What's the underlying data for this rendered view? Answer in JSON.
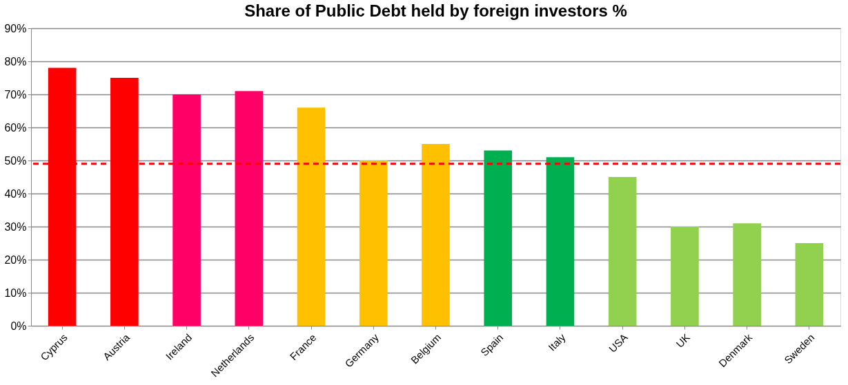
{
  "chart_data": {
    "type": "bar",
    "title": "Share of Public Debt held by foreign investors %",
    "categories": [
      "Cyprus",
      "Austria",
      "Ireland",
      "Netherlands",
      "France",
      "Germany",
      "Belgium",
      "Spain",
      "Italy",
      "USA",
      "UK",
      "Denmark",
      "Sweden"
    ],
    "values": [
      78,
      75,
      70,
      71,
      66,
      50,
      55,
      53,
      51,
      45,
      30,
      31,
      25
    ],
    "colors": [
      "#ff0000",
      "#ff0000",
      "#ff0066",
      "#ff0066",
      "#ffc000",
      "#ffc000",
      "#ffc000",
      "#00b050",
      "#00b050",
      "#92d050",
      "#92d050",
      "#92d050",
      "#92d050"
    ],
    "ylim": [
      0,
      90
    ],
    "yticks": [
      {
        "value": 0,
        "label": "0%"
      },
      {
        "value": 10,
        "label": "10%"
      },
      {
        "value": 20,
        "label": "20%"
      },
      {
        "value": 30,
        "label": "30%"
      },
      {
        "value": 40,
        "label": "40%"
      },
      {
        "value": 50,
        "label": "50%"
      },
      {
        "value": 60,
        "label": "60%"
      },
      {
        "value": 70,
        "label": "70%"
      },
      {
        "value": 80,
        "label": "80%"
      },
      {
        "value": 90,
        "label": "90%"
      }
    ],
    "ref_lines": [
      {
        "axis": "y",
        "value": 49,
        "color": "#ff0000",
        "line_style": "dashed"
      }
    ],
    "grid": "y"
  }
}
